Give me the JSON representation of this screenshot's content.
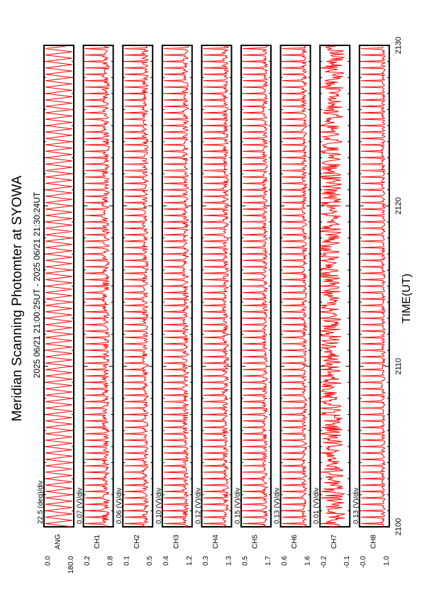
{
  "title": "Meridian Scanning Photomter at SYOWA",
  "time_range": "2025 06/21 21:00:25UT - 2025 06/21 21:30:24UT",
  "xlabel": "TIME(UT)",
  "x_ticks": [
    "2100",
    "2110",
    "2120",
    "2130"
  ],
  "colors": {
    "trace": "#ff0000",
    "frame": "#000000",
    "background": "#ffffff"
  },
  "chart_data": {
    "type": "line",
    "xlim": [
      0,
      30
    ],
    "x_unit": "minutes after 21:00 UT",
    "grid": false,
    "panels": [
      {
        "label": "ANG",
        "scale": "22.5 (deg)/div",
        "ylim_labels": [
          "0.0",
          "180.0"
        ],
        "ylim": [
          0.0,
          180.0
        ],
        "pattern": "sawtooth",
        "scans": 75,
        "noise": 0.0,
        "base": 0.05,
        "peak": 0.95,
        "drift": 0
      },
      {
        "label": "CH1",
        "scale": "0.07 (V)/div",
        "ylim_labels": [
          "0.2",
          "0.8"
        ],
        "ylim": [
          0.2,
          0.8
        ],
        "pattern": "spike",
        "scans": 75,
        "noise": 0.12,
        "base": 0.25,
        "peak": 0.95,
        "drift": 0
      },
      {
        "label": "CH2",
        "scale": "0.06 (V)/div",
        "ylim_labels": [
          "0.1",
          "0.5"
        ],
        "ylim": [
          0.1,
          0.5
        ],
        "pattern": "spike",
        "scans": 75,
        "noise": 0.1,
        "base": 0.25,
        "peak": 0.95,
        "drift": 0
      },
      {
        "label": "CH3",
        "scale": "0.10 (V)/div",
        "ylim_labels": [
          "0.4",
          "1.2"
        ],
        "ylim": [
          0.4,
          1.2
        ],
        "pattern": "spike",
        "scans": 75,
        "noise": 0.1,
        "base": 0.22,
        "peak": 0.95,
        "drift": 0
      },
      {
        "label": "CH4",
        "scale": "0.12 (V)/div",
        "ylim_labels": [
          "0.3",
          "1.3"
        ],
        "ylim": [
          0.3,
          1.3
        ],
        "pattern": "spike",
        "scans": 75,
        "noise": 0.1,
        "base": 0.2,
        "peak": 0.95,
        "drift": 0
      },
      {
        "label": "CH5",
        "scale": "0.15 (V)/div",
        "ylim_labels": [
          "0.5",
          "1.7"
        ],
        "ylim": [
          0.5,
          1.7
        ],
        "pattern": "spike",
        "scans": 75,
        "noise": 0.08,
        "base": 0.2,
        "peak": 0.95,
        "drift": 0
      },
      {
        "label": "CH6",
        "scale": "0.13 (V)/div",
        "ylim_labels": [
          "0.6",
          "1.6"
        ],
        "ylim": [
          0.6,
          1.6
        ],
        "pattern": "spike",
        "scans": 75,
        "noise": 0.08,
        "base": 0.2,
        "peak": 0.95,
        "drift": 0
      },
      {
        "label": "CH7",
        "scale": "0.01 (V)/div",
        "ylim_labels": [
          "-0.2",
          "-0.1"
        ],
        "ylim": [
          -0.2,
          -0.1
        ],
        "pattern": "noise",
        "scans": 75,
        "noise": 0.35,
        "base": 0.5,
        "peak": 0.9,
        "drift": 0.15
      },
      {
        "label": "CH8",
        "scale": "0.13 (V)/div",
        "ylim_labels": [
          "-0.0",
          "1.0"
        ],
        "ylim": [
          -0.0,
          1.0
        ],
        "pattern": "spike",
        "scans": 75,
        "noise": 0.06,
        "base": 0.2,
        "peak": 0.95,
        "drift": 0
      }
    ]
  }
}
